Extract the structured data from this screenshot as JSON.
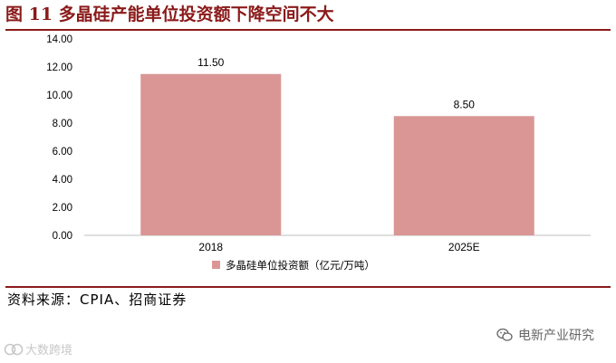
{
  "title": "图 11  多晶硅产能单位投资额下降空间不大",
  "chart_data": {
    "type": "bar",
    "categories": [
      "2018",
      "2025E"
    ],
    "series": [
      {
        "name": "多晶硅单位投资额（亿元/万吨）",
        "values": [
          11.5,
          8.5
        ],
        "color": "#d99694"
      }
    ],
    "data_labels": [
      "11.50",
      "8.50"
    ],
    "y_ticks": [
      "0.00",
      "2.00",
      "4.00",
      "6.00",
      "8.00",
      "10.00",
      "12.00",
      "14.00"
    ],
    "ylim": [
      0,
      14
    ],
    "grid": false,
    "legend_position": "bottom-center"
  },
  "source": "资料来源：CPIA、招商证券",
  "watermark_right": "电新产业研究",
  "watermark_left": "大数跨境",
  "icons": {
    "wechat": "wechat-icon",
    "watermark_left": "brand-logo-icon"
  }
}
